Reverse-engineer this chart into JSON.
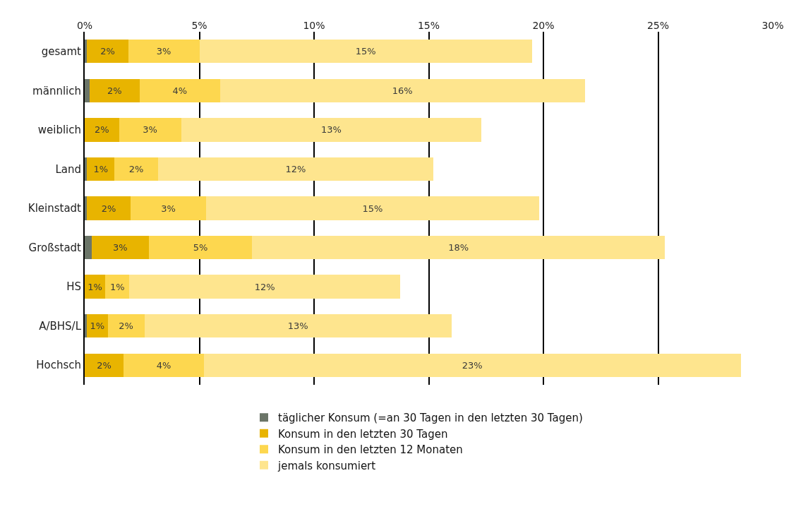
{
  "chart_data": {
    "type": "bar",
    "orientation": "horizontal",
    "stacked": true,
    "categories": [
      "gesamt",
      "männlich",
      "weiblich",
      "Land",
      "Kleinstadt",
      "Großstadt",
      "HS",
      "A/BHS/L",
      "Hochsch"
    ],
    "series": [
      {
        "name": "täglicher Konsum (=an 30 Tagen in den letzten 30 Tagen)",
        "color": "#6b7568",
        "values": [
          0.1,
          0.2,
          0,
          0.1,
          0.1,
          0.3,
          0,
          0.1,
          0
        ]
      },
      {
        "name": "Konsum in den letzten 30 Tagen",
        "color": "#e8b400",
        "values": [
          1.8,
          2.2,
          1.5,
          1.2,
          1.9,
          2.5,
          0.9,
          0.9,
          1.7
        ],
        "value_labels": [
          "2%",
          "2%",
          "2%",
          "1%",
          "2%",
          "3%",
          "1%",
          "1%",
          "2%"
        ]
      },
      {
        "name": "Konsum in den letzten 12 Monaten",
        "color": "#fdd74f",
        "values": [
          3.1,
          3.5,
          2.7,
          1.9,
          3.3,
          4.5,
          1.05,
          1.6,
          3.5
        ],
        "value_labels": [
          "3%",
          "4%",
          "3%",
          "2%",
          "3%",
          "5%",
          "1%",
          "2%",
          "4%"
        ]
      },
      {
        "name": "jemals konsumiert",
        "color": "#fee58e",
        "values": [
          14.5,
          15.9,
          13.1,
          12.0,
          14.5,
          18.0,
          11.8,
          13.4,
          23.4
        ],
        "value_labels": [
          "15%",
          "16%",
          "13%",
          "12%",
          "15%",
          "18%",
          "12%",
          "13%",
          "23%"
        ]
      }
    ],
    "xlim": [
      0,
      30
    ],
    "xticks": [
      {
        "value": 0,
        "label": "0%"
      },
      {
        "value": 5,
        "label": "5%"
      },
      {
        "value": 10,
        "label": "10%"
      },
      {
        "value": 15,
        "label": "15%"
      },
      {
        "value": 20,
        "label": "20%"
      },
      {
        "value": 25,
        "label": "25%"
      },
      {
        "value": 30,
        "label": "30%"
      }
    ],
    "grid": "x",
    "legend": "bottom"
  }
}
